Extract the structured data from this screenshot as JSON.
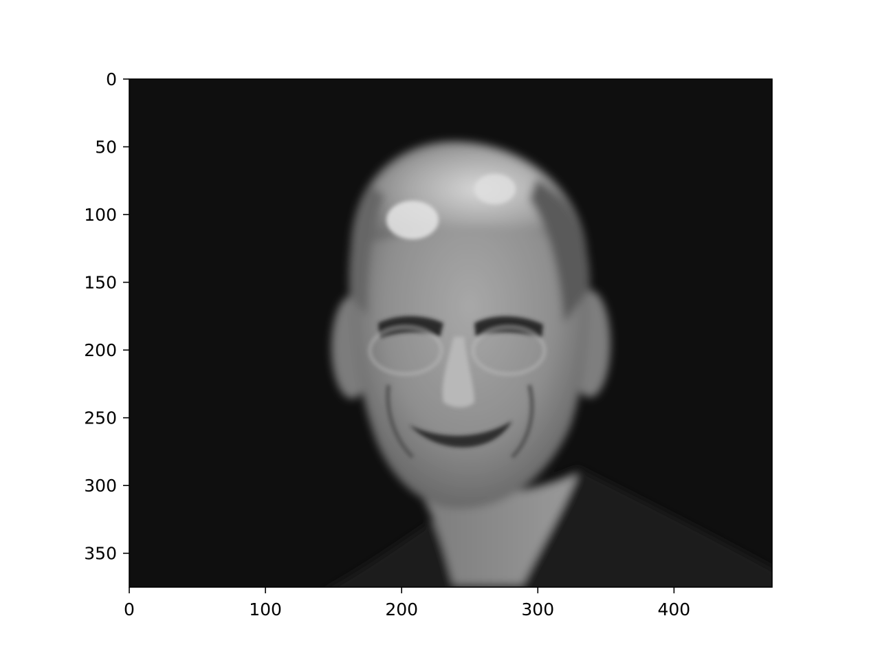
{
  "figure": {
    "kind": "image-plot",
    "image_subject": "grayscale blurred portrait photo",
    "colormap": "gray",
    "background": "#0f0f0f"
  },
  "axes": {
    "xlim": [
      0,
      472
    ],
    "ylim": [
      375,
      0
    ],
    "x_ticks": [
      {
        "value": 0,
        "label": "0"
      },
      {
        "value": 100,
        "label": "100"
      },
      {
        "value": 200,
        "label": "200"
      },
      {
        "value": 300,
        "label": "300"
      },
      {
        "value": 400,
        "label": "400"
      }
    ],
    "y_ticks": [
      {
        "value": 0,
        "label": "0"
      },
      {
        "value": 50,
        "label": "50"
      },
      {
        "value": 100,
        "label": "100"
      },
      {
        "value": 150,
        "label": "150"
      },
      {
        "value": 200,
        "label": "200"
      },
      {
        "value": 250,
        "label": "250"
      },
      {
        "value": 300,
        "label": "300"
      },
      {
        "value": 350,
        "label": "350"
      }
    ]
  }
}
